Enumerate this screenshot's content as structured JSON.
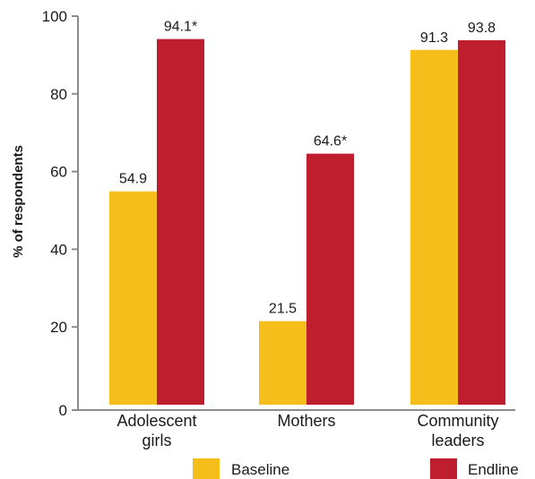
{
  "chart_data": {
    "type": "bar",
    "ylabel": "% of respondents",
    "ylim": [
      0,
      100
    ],
    "yticks": [
      "0",
      "20",
      "40",
      "60",
      "80",
      "100"
    ],
    "categories": [
      [
        "Adolescent",
        "girls"
      ],
      [
        "Mothers"
      ],
      [
        "Community",
        "leaders"
      ]
    ],
    "series": [
      {
        "name": "Baseline",
        "color": "#F6BE1A",
        "values": [
          54.9,
          21.5,
          91.3
        ],
        "labels": [
          "54.9",
          "21.5",
          "91.3"
        ]
      },
      {
        "name": "Endline",
        "color": "#BE1E2D",
        "values": [
          94.1,
          64.6,
          93.8
        ],
        "labels": [
          "94.1*",
          "64.6*",
          "93.8"
        ]
      }
    ],
    "grid": false,
    "legend_position": "bottom"
  }
}
